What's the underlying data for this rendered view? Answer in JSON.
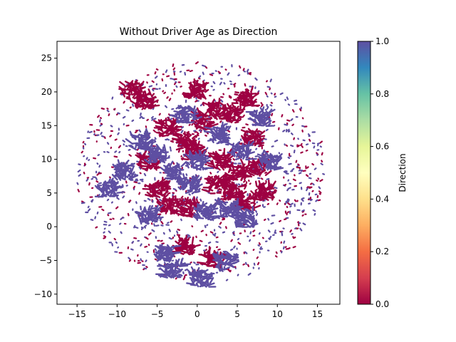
{
  "chart_data": {
    "type": "scatter",
    "title": "Without Driver Age as Direction",
    "xlabel": "",
    "ylabel": "",
    "xlim": [
      -17.5,
      17.8
    ],
    "ylim": [
      -11.5,
      27.5
    ],
    "x_ticks": [
      -15,
      -10,
      -5,
      0,
      5,
      10,
      15
    ],
    "y_ticks": [
      -10,
      -5,
      0,
      5,
      10,
      15,
      20,
      25
    ],
    "grid": false,
    "colorbar": {
      "label": "Direction",
      "colormap": "Spectral",
      "range": [
        0.0,
        1.0
      ],
      "ticks": [
        0.0,
        0.2,
        0.4,
        0.6,
        0.8,
        1.0
      ],
      "tick_labels": [
        "0.0",
        "0.2",
        "0.4",
        "0.6",
        "0.8",
        "1.0"
      ]
    },
    "series": [
      {
        "direction": 0.0,
        "color": "#9e0142",
        "clusters": [
          {
            "x": -6.5,
            "y": 18.5
          },
          {
            "x": -3.8,
            "y": 14.5
          },
          {
            "x": 0.8,
            "y": 15.5
          },
          {
            "x": 2.5,
            "y": 17.0
          },
          {
            "x": 4.5,
            "y": 16.5
          },
          {
            "x": 7.0,
            "y": 13.0
          },
          {
            "x": 6.0,
            "y": 19.0
          },
          {
            "x": -1.5,
            "y": 12.5
          },
          {
            "x": -0.5,
            "y": 11.0
          },
          {
            "x": 3.0,
            "y": 9.5
          },
          {
            "x": 5.0,
            "y": 8.0
          },
          {
            "x": 7.5,
            "y": 8.5
          },
          {
            "x": 2.5,
            "y": 6.0
          },
          {
            "x": 6.0,
            "y": 3.5
          },
          {
            "x": 8.5,
            "y": 5.0
          },
          {
            "x": -5.0,
            "y": 5.5
          },
          {
            "x": -3.5,
            "y": 3.0
          },
          {
            "x": -1.0,
            "y": 2.5
          },
          {
            "x": -6.0,
            "y": 9.5
          },
          {
            "x": 2.0,
            "y": -5.0
          },
          {
            "x": -1.5,
            "y": -3.0
          },
          {
            "x": 4.5,
            "y": 5.0
          },
          {
            "x": -8.0,
            "y": 20.0
          },
          {
            "x": 0.0,
            "y": 20.0
          }
        ]
      },
      {
        "direction": 1.0,
        "color": "#5e4fa2",
        "clusters": [
          {
            "x": -9.0,
            "y": 8.0
          },
          {
            "x": -3.0,
            "y": 8.0
          },
          {
            "x": -1.0,
            "y": 6.0
          },
          {
            "x": 0.0,
            "y": 9.5
          },
          {
            "x": 3.0,
            "y": 13.5
          },
          {
            "x": 5.5,
            "y": 11.0
          },
          {
            "x": -1.5,
            "y": 16.5
          },
          {
            "x": -5.0,
            "y": 10.5
          },
          {
            "x": -7.0,
            "y": 12.5
          },
          {
            "x": 4.0,
            "y": 2.5
          },
          {
            "x": 6.0,
            "y": 1.0
          },
          {
            "x": -4.0,
            "y": -4.0
          },
          {
            "x": 0.5,
            "y": -8.0
          },
          {
            "x": -3.0,
            "y": -6.5
          },
          {
            "x": 3.5,
            "y": -5.5
          },
          {
            "x": -6.0,
            "y": 1.5
          },
          {
            "x": 9.0,
            "y": 9.5
          },
          {
            "x": -11.0,
            "y": 5.5
          },
          {
            "x": 1.0,
            "y": 2.0
          },
          {
            "x": 8.0,
            "y": 16.0
          }
        ]
      }
    ]
  }
}
